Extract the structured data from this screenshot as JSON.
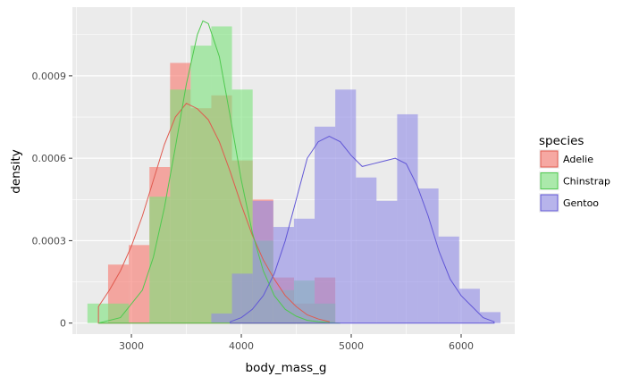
{
  "chart_data": {
    "type": "histogram",
    "xlabel": "body_mass_g",
    "ylabel": "density",
    "xlim": [
      2463,
      6488
    ],
    "ylim": [
      -4e-05,
      0.00115
    ],
    "xticks": [
      3000,
      4000,
      5000,
      6000
    ],
    "xtick_labels": [
      "3000",
      "4000",
      "5000",
      "6000"
    ],
    "yticks": [
      0,
      0.0003,
      0.0006,
      0.0009
    ],
    "ytick_labels": [
      "0",
      "0.0003",
      "0.0006",
      "0.0009"
    ],
    "grid": true,
    "legend": {
      "title": "species",
      "position": "right"
    },
    "bin_edges": [
      2600,
      2788,
      2976,
      3164,
      3352,
      3539,
      3727,
      3915,
      4103,
      4291,
      4479,
      4667,
      4855,
      5043,
      5230,
      5418,
      5606,
      5794,
      5982,
      6170,
      6358
    ],
    "series": [
      {
        "name": "Adelie",
        "fill": "#f8766d",
        "line": "#e05a4f",
        "hist": [
          0,
          0.000213,
          0.000284,
          0.000568,
          0.000947,
          0.000782,
          0.000829,
          0.000592,
          0.00045,
          0.000166,
          7.1e-05,
          0.000166,
          0,
          0,
          0,
          0,
          0,
          0,
          0,
          0
        ],
        "kde_x": [
          2700,
          2800,
          2900,
          3000,
          3100,
          3200,
          3300,
          3400,
          3500,
          3550,
          3600,
          3700,
          3800,
          3900,
          4000,
          4100,
          4200,
          4300,
          4400,
          4500,
          4600,
          4700,
          4800
        ],
        "kde_y": [
          6e-05,
          0.00012,
          0.00019,
          0.00028,
          0.00039,
          0.00052,
          0.00065,
          0.00075,
          0.0008,
          0.00079,
          0.00078,
          0.00074,
          0.00066,
          0.00055,
          0.00043,
          0.00032,
          0.00023,
          0.00016,
          0.0001,
          6e-05,
          3e-05,
          1.5e-05,
          5e-06
        ]
      },
      {
        "name": "Chinstrap",
        "fill": "#7ce37c",
        "line": "#4fc94f",
        "hist": [
          7.1e-05,
          7.1e-05,
          0,
          0.00046,
          0.00085,
          0.00101,
          0.00108,
          0.00085,
          0.0003,
          0.00012,
          0.000155,
          7.1e-05,
          0,
          0,
          0,
          0,
          0,
          0,
          0,
          0
        ],
        "kde_x": [
          2700,
          2900,
          3100,
          3200,
          3300,
          3400,
          3500,
          3600,
          3650,
          3700,
          3800,
          3900,
          4000,
          4100,
          4200,
          4300,
          4400,
          4500,
          4600,
          4700,
          4800,
          4900
        ],
        "kde_y": [
          0,
          2e-05,
          0.00012,
          0.00024,
          0.00042,
          0.00064,
          0.00087,
          0.00105,
          0.0011,
          0.00109,
          0.00097,
          0.00075,
          0.00052,
          0.00033,
          0.00019,
          0.0001,
          5e-05,
          2.5e-05,
          1e-05,
          5e-06,
          2e-06,
          0
        ]
      },
      {
        "name": "Gentoo",
        "fill": "#8f8ae6",
        "line": "#6157d6",
        "hist": [
          0,
          0,
          0,
          0,
          0,
          0,
          3.5e-05,
          0.00018,
          0.000445,
          0.00035,
          0.00038,
          0.000715,
          0.00085,
          0.00053,
          0.000445,
          0.00076,
          0.00049,
          0.000315,
          0.000125,
          4e-05
        ],
        "kde_x": [
          3900,
          4000,
          4100,
          4200,
          4300,
          4400,
          4500,
          4600,
          4700,
          4800,
          4900,
          5000,
          5100,
          5200,
          5300,
          5400,
          5500,
          5600,
          5700,
          5800,
          5900,
          6000,
          6100,
          6200,
          6300
        ],
        "kde_y": [
          5e-06,
          2e-05,
          5e-05,
          0.0001,
          0.00018,
          0.0003,
          0.00045,
          0.0006,
          0.00066,
          0.00068,
          0.00066,
          0.00061,
          0.00057,
          0.00058,
          0.00059,
          0.0006,
          0.00058,
          0.0005,
          0.00039,
          0.00026,
          0.00016,
          0.0001,
          6e-05,
          2e-05,
          5e-06
        ]
      }
    ]
  }
}
